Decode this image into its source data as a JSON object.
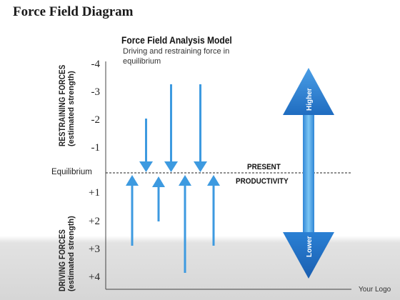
{
  "slide_title": "Force Field Diagram",
  "model": {
    "title": "Force Field Analysis Model",
    "subtitle": "Driving and restraining force in equilibrium"
  },
  "axis": {
    "restraining_label": "RESTRAINING FORCES",
    "restraining_sub": "(estimated strength)",
    "driving_label": "DRIVING FORCES",
    "driving_sub": "(estimated strength)",
    "restraining_ticks": [
      "-4",
      "-3",
      "-2",
      "-1"
    ],
    "driving_ticks": [
      "+1",
      "+2",
      "+3",
      "+4"
    ],
    "equilibrium_label": "Equilibrium"
  },
  "present_label": "PRESENT",
  "productivity_label": "PRODUCTIVITY",
  "higher_label": "Higher",
  "lower_label": "Lower",
  "logo_text": "Your Logo",
  "colors": {
    "arrow_blue": "#3d9ae0",
    "big_arrow_blue": "#2a78c8",
    "axis_color": "#444444"
  },
  "forces": {
    "restraining_strengths": [
      -2,
      -3,
      -3
    ],
    "driving_strengths": [
      3,
      2,
      4,
      3
    ]
  }
}
